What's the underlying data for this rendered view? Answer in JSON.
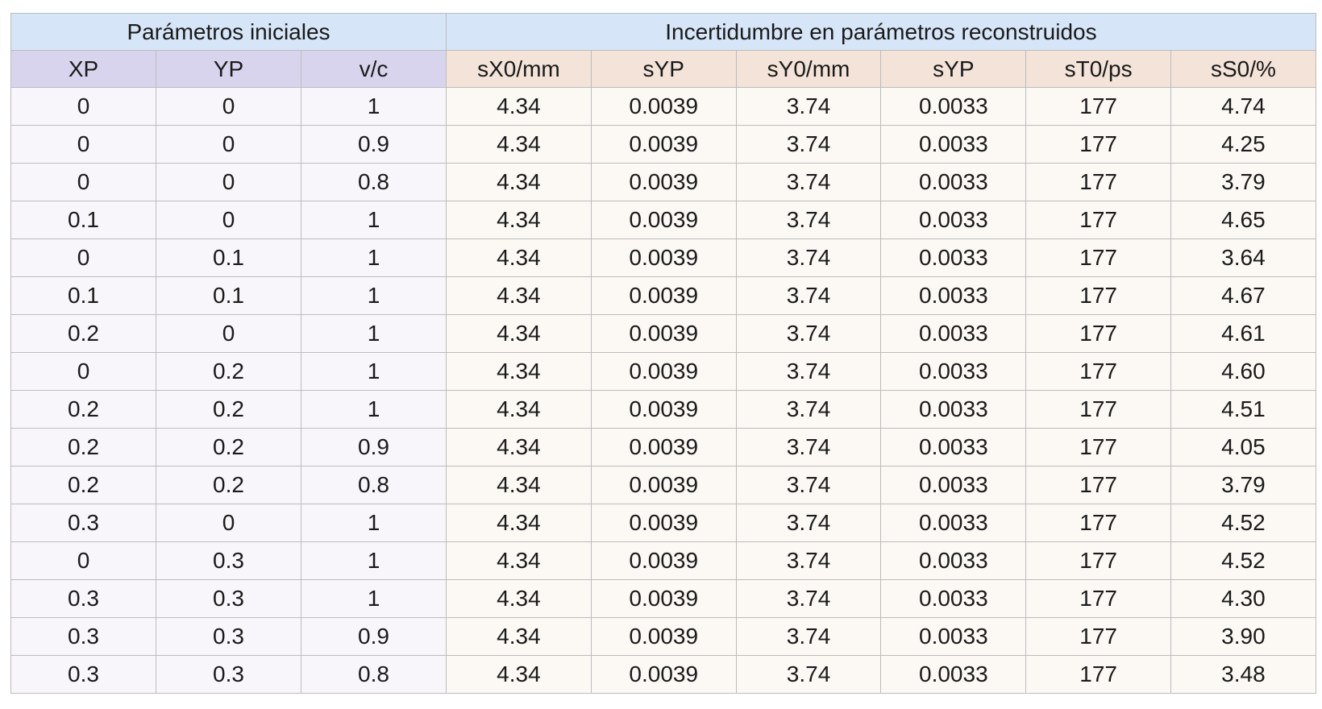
{
  "table": {
    "groups": {
      "left": "Parámetros iniciales",
      "right": "Incertidumbre en parámetros reconstruidos"
    },
    "columns": [
      "XP",
      "YP",
      "v/c",
      "sX0/mm",
      "sYP",
      "sY0/mm",
      "sYP",
      "sT0/ps",
      "sS0/%"
    ],
    "rows": [
      [
        "0",
        "0",
        "1",
        "4.34",
        "0.0039",
        "3.74",
        "0.0033",
        "177",
        "4.74"
      ],
      [
        "0",
        "0",
        "0.9",
        "4.34",
        "0.0039",
        "3.74",
        "0.0033",
        "177",
        "4.25"
      ],
      [
        "0",
        "0",
        "0.8",
        "4.34",
        "0.0039",
        "3.74",
        "0.0033",
        "177",
        "3.79"
      ],
      [
        "0.1",
        "0",
        "1",
        "4.34",
        "0.0039",
        "3.74",
        "0.0033",
        "177",
        "4.65"
      ],
      [
        "0",
        "0.1",
        "1",
        "4.34",
        "0.0039",
        "3.74",
        "0.0033",
        "177",
        "3.64"
      ],
      [
        "0.1",
        "0.1",
        "1",
        "4.34",
        "0.0039",
        "3.74",
        "0.0033",
        "177",
        "4.67"
      ],
      [
        "0.2",
        "0",
        "1",
        "4.34",
        "0.0039",
        "3.74",
        "0.0033",
        "177",
        "4.61"
      ],
      [
        "0",
        "0.2",
        "1",
        "4.34",
        "0.0039",
        "3.74",
        "0.0033",
        "177",
        "4.60"
      ],
      [
        "0.2",
        "0.2",
        "1",
        "4.34",
        "0.0039",
        "3.74",
        "0.0033",
        "177",
        "4.51"
      ],
      [
        "0.2",
        "0.2",
        "0.9",
        "4.34",
        "0.0039",
        "3.74",
        "0.0033",
        "177",
        "4.05"
      ],
      [
        "0.2",
        "0.2",
        "0.8",
        "4.34",
        "0.0039",
        "3.74",
        "0.0033",
        "177",
        "3.79"
      ],
      [
        "0.3",
        "0",
        "1",
        "4.34",
        "0.0039",
        "3.74",
        "0.0033",
        "177",
        "4.52"
      ],
      [
        "0",
        "0.3",
        "1",
        "4.34",
        "0.0039",
        "3.74",
        "0.0033",
        "177",
        "4.52"
      ],
      [
        "0.3",
        "0.3",
        "1",
        "4.34",
        "0.0039",
        "3.74",
        "0.0033",
        "177",
        "4.30"
      ],
      [
        "0.3",
        "0.3",
        "0.9",
        "4.34",
        "0.0039",
        "3.74",
        "0.0033",
        "177",
        "3.90"
      ],
      [
        "0.3",
        "0.3",
        "0.8",
        "4.34",
        "0.0039",
        "3.74",
        "0.0033",
        "177",
        "3.48"
      ]
    ]
  },
  "colors": {
    "group_header": "#d6e5f7",
    "left_header": "#d9d4ee",
    "right_header": "#f3e3d8",
    "left_cells": "#f8f6fb",
    "right_cells": "#fcf9f4",
    "grid": "#bcbcbc"
  }
}
